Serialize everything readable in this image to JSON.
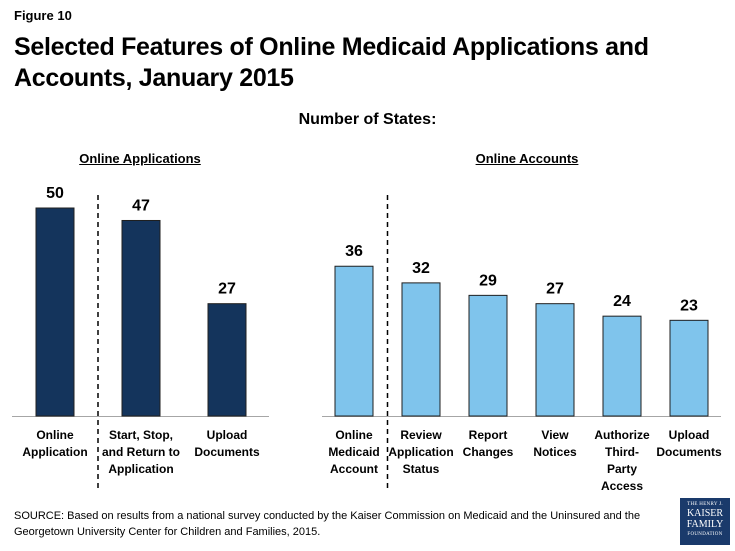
{
  "figure_label": "Figure 10",
  "title": "Selected Features of Online Medicaid Applications and Accounts, January 2015",
  "source": "SOURCE: Based on results from a national survey conducted by the Kaiser Commission on Medicaid and the Uninsured and the Georgetown University Center for Children and Families, 2015.",
  "logo": {
    "line1": "THE HENRY J.",
    "line2": "KAISER",
    "line3": "FAMILY",
    "line4": "FOUNDATION"
  },
  "colors": {
    "applications": "#14345c",
    "accounts": "#7fc4ec",
    "axis": "#a6a6a6"
  },
  "chart_data": [
    {
      "type": "bar",
      "title": "Online Applications",
      "ylabel": "Number of States:",
      "ylim": [
        0,
        55
      ],
      "categories": [
        "Online Application",
        "Start, Stop, and Return to Application",
        "Upload Documents"
      ],
      "category_lines": [
        [
          "Online",
          "Application"
        ],
        [
          "Start, Stop,",
          "and Return to",
          "Application"
        ],
        [
          "Upload",
          "Documents"
        ]
      ],
      "values": [
        50,
        47,
        27
      ]
    },
    {
      "type": "bar",
      "title": "Online Accounts",
      "ylabel": "Number of States:",
      "ylim": [
        0,
        55
      ],
      "categories": [
        "Online Medicaid Account",
        "Review Application Status",
        "Report Changes",
        "View Notices",
        "Authorize Third-Party Access",
        "Upload Documents"
      ],
      "category_lines": [
        [
          "Online",
          "Medicaid",
          "Account"
        ],
        [
          "Review",
          "Application",
          "Status"
        ],
        [
          "Report",
          "Changes"
        ],
        [
          "View",
          "Notices"
        ],
        [
          "Authorize",
          "Third-",
          "Party",
          "Access"
        ],
        [
          "Upload",
          "Documents"
        ]
      ],
      "values": [
        36,
        32,
        29,
        27,
        24,
        23
      ]
    }
  ]
}
